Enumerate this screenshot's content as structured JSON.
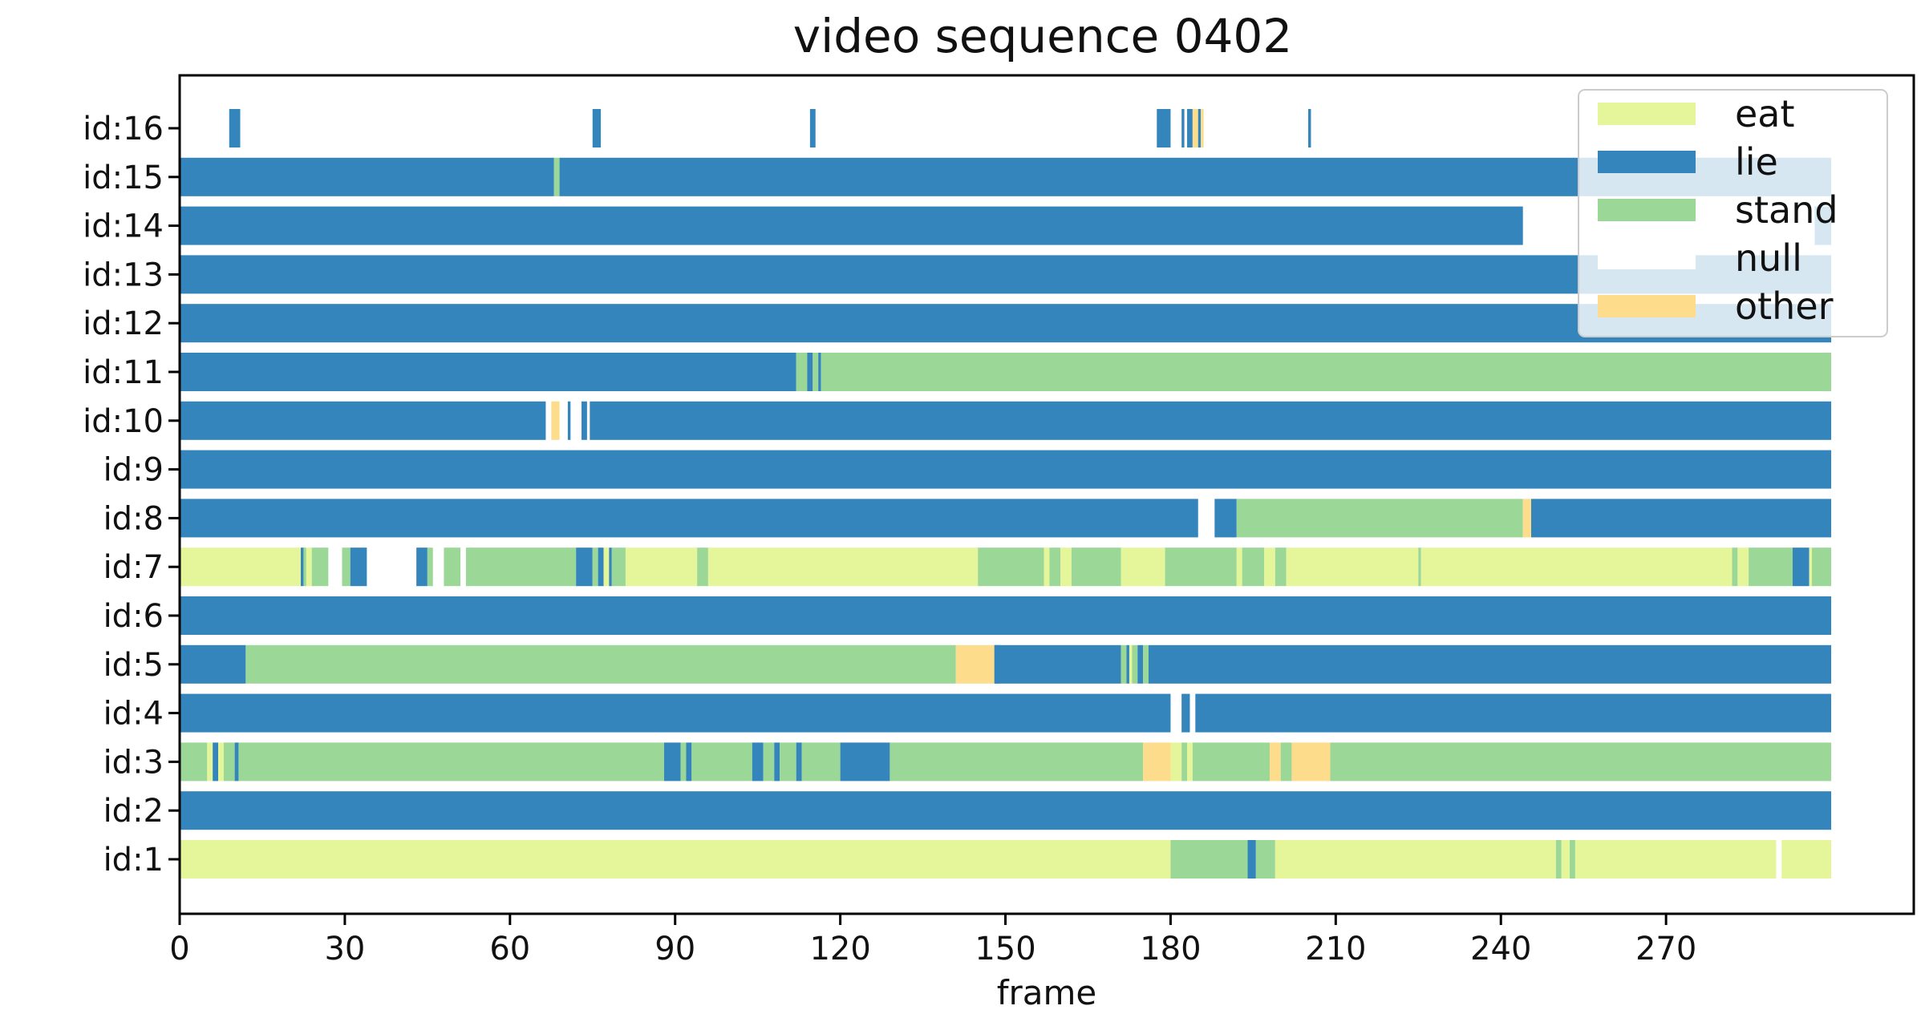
{
  "chart_data": {
    "type": "bar",
    "subtype": "horizontal-state-timeline",
    "title": "video sequence 0402",
    "xlabel": "frame",
    "ylabel": "",
    "xlim": [
      0,
      315
    ],
    "xticks": [
      0,
      30,
      60,
      90,
      120,
      150,
      180,
      210,
      240,
      270
    ],
    "categories": [
      "id:1",
      "id:2",
      "id:3",
      "id:4",
      "id:5",
      "id:6",
      "id:7",
      "id:8",
      "id:9",
      "id:10",
      "id:11",
      "id:12",
      "id:13",
      "id:14",
      "id:15",
      "id:16"
    ],
    "legend": {
      "position": "top-right",
      "entries": [
        {
          "label": "eat",
          "color": "#e4f59a"
        },
        {
          "label": "lie",
          "color": "#3385bc"
        },
        {
          "label": "stand",
          "color": "#9bd797"
        },
        {
          "label": "null",
          "color": "#ffffff"
        },
        {
          "label": "other",
          "color": "#fddd8c"
        }
      ]
    },
    "colors": {
      "eat": "#e4f59a",
      "lie": "#3385bc",
      "stand": "#9bd797",
      "null": "#ffffff",
      "other": "#fddd8c"
    },
    "grid": false,
    "series": [
      {
        "category": "id:1",
        "segments": [
          [
            "eat",
            0,
            180
          ],
          [
            "stand",
            180,
            194
          ],
          [
            "lie",
            194,
            195.5
          ],
          [
            "stand",
            195.5,
            199
          ],
          [
            "eat",
            199,
            250
          ],
          [
            "stand",
            250,
            251
          ],
          [
            "eat",
            251,
            252.5
          ],
          [
            "stand",
            252.5,
            253.5
          ],
          [
            "eat",
            253.5,
            290
          ],
          [
            "null",
            290,
            291
          ],
          [
            "eat",
            291,
            300
          ]
        ]
      },
      {
        "category": "id:2",
        "segments": [
          [
            "lie",
            0,
            300
          ]
        ]
      },
      {
        "category": "id:3",
        "segments": [
          [
            "stand",
            0,
            5
          ],
          [
            "eat",
            5,
            6
          ],
          [
            "lie",
            6,
            7
          ],
          [
            "eat",
            7,
            8
          ],
          [
            "stand",
            8,
            10
          ],
          [
            "lie",
            10,
            10.7
          ],
          [
            "stand",
            10.7,
            88
          ],
          [
            "lie",
            88,
            91
          ],
          [
            "stand",
            91,
            92
          ],
          [
            "lie",
            92,
            93
          ],
          [
            "stand",
            93,
            104
          ],
          [
            "lie",
            104,
            106
          ],
          [
            "stand",
            106,
            108
          ],
          [
            "lie",
            108,
            109
          ],
          [
            "stand",
            109,
            112
          ],
          [
            "lie",
            112,
            113
          ],
          [
            "stand",
            113,
            120
          ],
          [
            "lie",
            120,
            129
          ],
          [
            "stand",
            129,
            175
          ],
          [
            "other",
            175,
            180
          ],
          [
            "eat",
            180,
            182
          ],
          [
            "stand",
            182,
            183
          ],
          [
            "eat",
            183,
            184
          ],
          [
            "stand",
            184,
            198
          ],
          [
            "other",
            198,
            200
          ],
          [
            "stand",
            200,
            202
          ],
          [
            "other",
            202,
            209
          ],
          [
            "stand",
            209,
            300
          ]
        ]
      },
      {
        "category": "id:4",
        "segments": [
          [
            "lie",
            0,
            180
          ],
          [
            "null",
            180,
            182
          ],
          [
            "lie",
            182,
            183.5
          ],
          [
            "null",
            183.5,
            184.5
          ],
          [
            "lie",
            184.5,
            300
          ]
        ]
      },
      {
        "category": "id:5",
        "segments": [
          [
            "lie",
            0,
            12
          ],
          [
            "stand",
            12,
            141
          ],
          [
            "other",
            141,
            148
          ],
          [
            "lie",
            148,
            149
          ],
          [
            "stand",
            149,
            148
          ],
          [
            "lie",
            148,
            171
          ],
          [
            "stand",
            171,
            172
          ],
          [
            "lie",
            172,
            172.5
          ],
          [
            "eat",
            172.5,
            173
          ],
          [
            "stand",
            173,
            174
          ],
          [
            "lie",
            174,
            175
          ],
          [
            "stand",
            175,
            176
          ],
          [
            "lie",
            176,
            300
          ]
        ]
      },
      {
        "category": "id:6",
        "segments": [
          [
            "lie",
            0,
            300
          ]
        ]
      },
      {
        "category": "id:7",
        "segments": [
          [
            "eat",
            0,
            22
          ],
          [
            "lie",
            22,
            22.5
          ],
          [
            "stand",
            22.5,
            23
          ],
          [
            "eat",
            23,
            24
          ],
          [
            "stand",
            24,
            27
          ],
          [
            "null",
            27,
            29.5
          ],
          [
            "stand",
            29.5,
            31
          ],
          [
            "lie",
            31,
            34
          ],
          [
            "null",
            34,
            43
          ],
          [
            "lie",
            43,
            45
          ],
          [
            "stand",
            45,
            46
          ],
          [
            "null",
            46,
            48
          ],
          [
            "stand",
            48,
            51
          ],
          [
            "null",
            51,
            52
          ],
          [
            "stand",
            52,
            72
          ],
          [
            "lie",
            72,
            75
          ],
          [
            "stand",
            75,
            76
          ],
          [
            "lie",
            76,
            77
          ],
          [
            "eat",
            77,
            78
          ],
          [
            "lie",
            78,
            78.5
          ],
          [
            "stand",
            78.5,
            81
          ],
          [
            "eat",
            81,
            94
          ],
          [
            "stand",
            94,
            96
          ],
          [
            "eat",
            96,
            145
          ],
          [
            "stand",
            145,
            157
          ],
          [
            "eat",
            157,
            158
          ],
          [
            "stand",
            158,
            160
          ],
          [
            "eat",
            160,
            162
          ],
          [
            "stand",
            162,
            171
          ],
          [
            "eat",
            171,
            179
          ],
          [
            "stand",
            179,
            192
          ],
          [
            "eat",
            192,
            193
          ],
          [
            "stand",
            193,
            197
          ],
          [
            "eat",
            197,
            199
          ],
          [
            "stand",
            199,
            201
          ],
          [
            "eat",
            201,
            225
          ],
          [
            "stand",
            225,
            225.5
          ],
          [
            "eat",
            225.5,
            282
          ],
          [
            "stand",
            282,
            283
          ],
          [
            "eat",
            283,
            285
          ],
          [
            "stand",
            285,
            293
          ],
          [
            "lie",
            293,
            296
          ],
          [
            "eat",
            296,
            296.5
          ],
          [
            "stand",
            296.5,
            300
          ]
        ]
      },
      {
        "category": "id:8",
        "segments": [
          [
            "lie",
            0,
            185
          ],
          [
            "null",
            185,
            188
          ],
          [
            "lie",
            188,
            192
          ],
          [
            "stand",
            192,
            244
          ],
          [
            "other",
            244,
            245.5
          ],
          [
            "lie",
            245.5,
            300
          ]
        ]
      },
      {
        "category": "id:9",
        "segments": [
          [
            "lie",
            0,
            300
          ]
        ]
      },
      {
        "category": "id:10",
        "segments": [
          [
            "lie",
            0,
            66.5
          ],
          [
            "null",
            66.5,
            67.5
          ],
          [
            "other",
            67.5,
            69
          ],
          [
            "null",
            69,
            70.5
          ],
          [
            "lie",
            70.5,
            71
          ],
          [
            "null",
            71,
            73
          ],
          [
            "lie",
            73,
            74
          ],
          [
            "null",
            74,
            74.5
          ],
          [
            "lie",
            74.5,
            300
          ]
        ]
      },
      {
        "category": "id:11",
        "segments": [
          [
            "lie",
            0,
            112
          ],
          [
            "stand",
            112,
            114
          ],
          [
            "lie",
            114,
            115
          ],
          [
            "stand",
            115,
            116
          ],
          [
            "lie",
            116,
            116.5
          ],
          [
            "stand",
            116.5,
            300
          ]
        ]
      },
      {
        "category": "id:12",
        "segments": [
          [
            "lie",
            0,
            300
          ]
        ]
      },
      {
        "category": "id:13",
        "segments": [
          [
            "lie",
            0,
            300
          ]
        ]
      },
      {
        "category": "id:14",
        "segments": [
          [
            "lie",
            0,
            244
          ],
          [
            "null",
            244,
            297
          ],
          [
            "lie",
            297,
            300
          ]
        ]
      },
      {
        "category": "id:15",
        "segments": [
          [
            "lie",
            0,
            68
          ],
          [
            "stand",
            68,
            69
          ],
          [
            "lie",
            69,
            300
          ]
        ]
      },
      {
        "category": "id:16",
        "segments": [
          [
            "null",
            0,
            9
          ],
          [
            "lie",
            9,
            11
          ],
          [
            "null",
            11,
            75
          ],
          [
            "lie",
            75,
            76.5
          ],
          [
            "null",
            76.5,
            114.5
          ],
          [
            "lie",
            114.5,
            115.5
          ],
          [
            "null",
            115.5,
            177.5
          ],
          [
            "lie",
            177.5,
            180
          ],
          [
            "null",
            180,
            182
          ],
          [
            "lie",
            182,
            182.5
          ],
          [
            "null",
            182.5,
            183
          ],
          [
            "lie",
            183,
            184
          ],
          [
            "other",
            184,
            185
          ],
          [
            "lie",
            185,
            185.5
          ],
          [
            "other",
            185.5,
            186
          ],
          [
            "null",
            186,
            205
          ],
          [
            "lie",
            205,
            205.5
          ],
          [
            "null",
            205.5,
            300
          ]
        ]
      }
    ]
  }
}
